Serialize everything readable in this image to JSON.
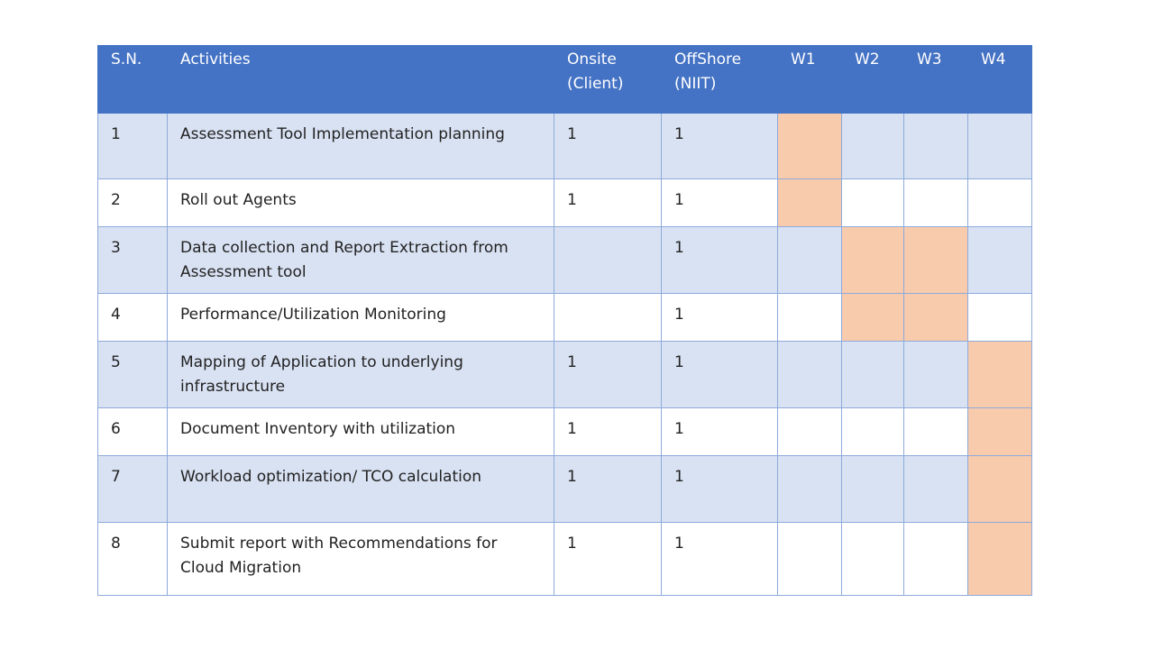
{
  "table": {
    "header": [
      "S.N.",
      "Activities",
      "Onsite (Client)",
      "OffShore (NIIT)",
      "W1",
      "W2",
      "W3",
      "W4"
    ],
    "rows": [
      {
        "sn": 1,
        "activity": "Assessment Tool Implementation planning",
        "onsite": 1,
        "offshore": 1,
        "schedule": [
          true,
          false,
          false,
          false
        ]
      },
      {
        "sn": 2,
        "activity": "Roll out Agents",
        "onsite": 1,
        "offshore": 1,
        "schedule": [
          true,
          false,
          false,
          false
        ]
      },
      {
        "sn": 3,
        "activity": "Data collection and Report Extraction from Assessment tool",
        "onsite": null,
        "offshore": 1,
        "schedule": [
          false,
          true,
          true,
          false
        ]
      },
      {
        "sn": 4,
        "activity": "Performance/Utilization Monitoring",
        "onsite": null,
        "offshore": 1,
        "schedule": [
          false,
          true,
          true,
          false
        ]
      },
      {
        "sn": 5,
        "activity": "Mapping of Application to underlying infrastructure",
        "onsite": 1,
        "offshore": 1,
        "schedule": [
          false,
          false,
          false,
          true
        ]
      },
      {
        "sn": 6,
        "activity": "Document Inventory with utilization",
        "onsite": 1,
        "offshore": 1,
        "schedule": [
          false,
          false,
          false,
          true
        ]
      },
      {
        "sn": 7,
        "activity": "Workload optimization/ TCO calculation",
        "onsite": 1,
        "offshore": 1,
        "schedule": [
          false,
          false,
          false,
          true
        ]
      },
      {
        "sn": 8,
        "activity": "Submit report with Recommendations for Cloud Migration",
        "onsite": 1,
        "offshore": 1,
        "schedule": [
          false,
          false,
          false,
          true
        ]
      }
    ],
    "colors": {
      "header": "#4472c4",
      "band": "#d9e2f3",
      "plain": "#ffffff",
      "scheduled": "#f8cbad"
    }
  }
}
